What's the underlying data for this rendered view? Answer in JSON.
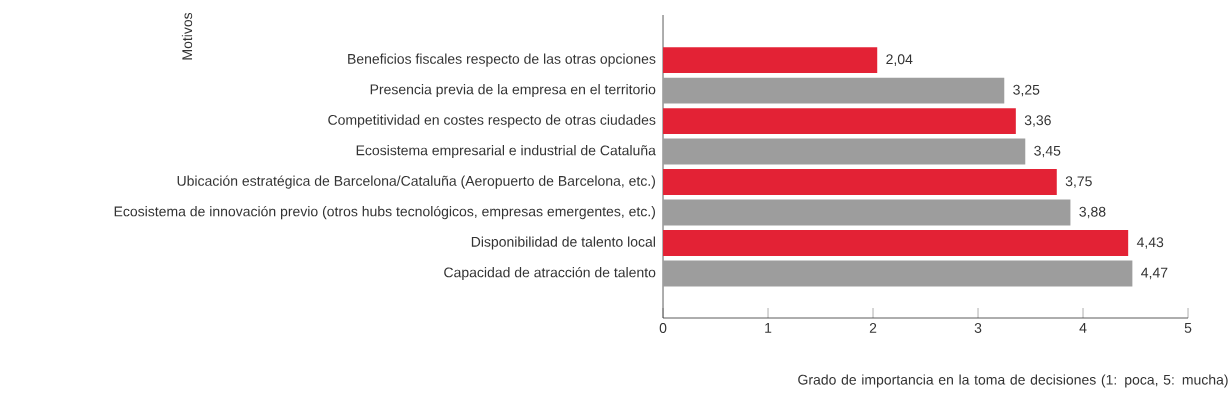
{
  "chart_data": {
    "type": "bar",
    "orientation": "horizontal",
    "categories": [
      "Beneficios fiscales respecto de las otras opciones",
      "Presencia previa de la empresa en el territorio",
      "Competitividad en costes respecto de otras ciudades",
      "Ecosistema empresarial e industrial de Cataluña",
      "Ubicación estratégica de Barcelona/Cataluña (Aeropuerto de Barcelona, etc.)",
      "Ecosistema de innovación previo (otros hubs tecnológicos, empresas emergentes, etc.)",
      "Disponibilidad de talento local",
      "Capacidad de atracción de talento"
    ],
    "values": [
      2.04,
      3.25,
      3.36,
      3.45,
      3.75,
      3.88,
      4.43,
      4.47
    ],
    "value_labels": [
      "2,04",
      "3,25",
      "3,36",
      "3,45",
      "3,75",
      "3,88",
      "4,43",
      "4,47"
    ],
    "colors": [
      "#e32235",
      "#9d9d9d",
      "#e32235",
      "#9d9d9d",
      "#e32235",
      "#9d9d9d",
      "#e32235",
      "#9d9d9d"
    ],
    "xlim": [
      0,
      5
    ],
    "xticks": [
      0,
      1,
      2,
      3,
      4,
      5
    ],
    "xlabel": "Grado de importancia en la toma de decisiones (1: poca, 5: mucha)",
    "ylabel": "Motivos"
  }
}
